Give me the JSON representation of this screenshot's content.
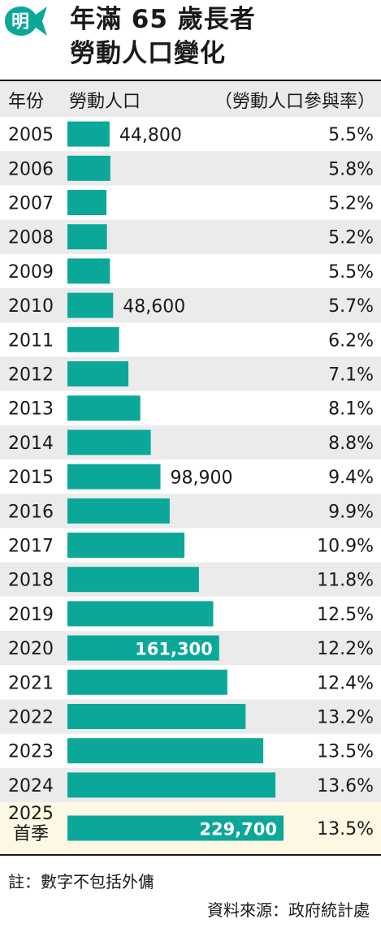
{
  "title_line1": "年滿 65 歲長者",
  "title_line2": "勞動人口變化",
  "logo_text": "明",
  "header": {
    "year": "年份",
    "labour": "勞動人口",
    "rate": "（勞動人口參與率）"
  },
  "colors": {
    "bar": "#0ba89a",
    "row_alt": "#ebebeb",
    "row_highlight": "#fdf8e3",
    "logo": "#0ba89a"
  },
  "chart_data": {
    "type": "bar",
    "orientation": "horizontal",
    "categories": [
      "2005",
      "2006",
      "2007",
      "2008",
      "2009",
      "2010",
      "2011",
      "2012",
      "2013",
      "2014",
      "2015",
      "2016",
      "2017",
      "2018",
      "2019",
      "2020",
      "2021",
      "2022",
      "2023",
      "2024",
      "2025\n首季"
    ],
    "values": [
      44800,
      45600,
      41500,
      42000,
      45200,
      48600,
      54900,
      64800,
      77400,
      88600,
      98900,
      108700,
      124400,
      139800,
      155000,
      161300,
      170000,
      189400,
      208200,
      221100,
      229700
    ],
    "rates": [
      "5.5%",
      "5.8%",
      "5.2%",
      "5.2%",
      "5.5%",
      "5.7%",
      "6.2%",
      "7.1%",
      "8.1%",
      "8.8%",
      "9.4%",
      "9.9%",
      "10.9%",
      "11.8%",
      "12.5%",
      "12.2%",
      "12.4%",
      "13.2%",
      "13.5%",
      "13.6%",
      "13.5%"
    ],
    "value_labels": {
      "0": {
        "text": "44,800",
        "placement": "outside"
      },
      "5": {
        "text": "48,600",
        "placement": "outside"
      },
      "10": {
        "text": "98,900",
        "placement": "outside"
      },
      "15": {
        "text": "161,300",
        "placement": "inside"
      },
      "20": {
        "text": "229,700",
        "placement": "inside"
      }
    },
    "highlight_index": 20
  },
  "footnote": "註：數字不包括外傭",
  "source": "資料來源：政府統計處"
}
